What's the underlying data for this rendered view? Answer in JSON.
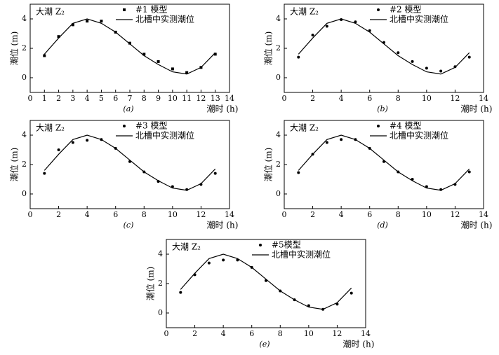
{
  "chart_data": [
    {
      "type": "line",
      "caption": "(a)",
      "title": "大潮 Z₂",
      "xlabel": "潮时 (h)",
      "ylabel": "潮位 (m)",
      "x": [
        1,
        2,
        3,
        4,
        5,
        6,
        7,
        8,
        9,
        10,
        11,
        12,
        13
      ],
      "xlim": [
        0,
        14
      ],
      "xticks": [
        0,
        1,
        2,
        3,
        4,
        5,
        6,
        7,
        8,
        9,
        10,
        11,
        12,
        13,
        14
      ],
      "ylim": [
        -1,
        5
      ],
      "yticks": [
        0,
        2,
        4
      ],
      "series": [
        {
          "name": "#1 模型",
          "color": "#000000",
          "style": "points",
          "marker": "square",
          "values": [
            1.5,
            2.8,
            3.6,
            3.85,
            3.85,
            3.1,
            2.35,
            1.6,
            1.1,
            0.6,
            0.35,
            0.7,
            1.6
          ]
        },
        {
          "name": "北槽中实测潮位",
          "color": "#000000",
          "style": "line",
          "values": [
            1.6,
            2.7,
            3.7,
            4.0,
            3.7,
            3.1,
            2.3,
            1.5,
            0.9,
            0.4,
            0.25,
            0.7,
            1.7
          ]
        }
      ]
    },
    {
      "type": "line",
      "caption": "(b)",
      "title": "大潮 Z₂",
      "xlabel": "潮时 (h)",
      "ylabel": "潮位 (m)",
      "x": [
        1,
        2,
        3,
        4,
        5,
        6,
        7,
        8,
        9,
        10,
        11,
        12,
        13
      ],
      "xlim": [
        0,
        14
      ],
      "xticks": [
        0,
        2,
        4,
        6,
        8,
        10,
        12,
        14
      ],
      "ylim": [
        -1,
        5
      ],
      "yticks": [
        0,
        2,
        4
      ],
      "series": [
        {
          "name": "#2 模型",
          "color": "#000000",
          "style": "points",
          "marker": "circle",
          "values": [
            1.4,
            2.9,
            3.5,
            3.95,
            3.8,
            3.2,
            2.4,
            1.7,
            1.1,
            0.65,
            0.45,
            0.75,
            1.4
          ]
        },
        {
          "name": "北槽中实测潮位",
          "color": "#000000",
          "style": "line",
          "values": [
            1.6,
            2.7,
            3.7,
            4.0,
            3.7,
            3.1,
            2.3,
            1.5,
            0.9,
            0.4,
            0.25,
            0.7,
            1.7
          ]
        }
      ]
    },
    {
      "type": "line",
      "caption": "(c)",
      "title": "大潮 Z₂",
      "xlabel": "潮时 (h)",
      "ylabel": "潮位 (m)",
      "x": [
        1,
        2,
        3,
        4,
        5,
        6,
        7,
        8,
        9,
        10,
        11,
        12,
        13
      ],
      "xlim": [
        0,
        14
      ],
      "xticks": [
        0,
        2,
        4,
        6,
        8,
        10,
        12,
        14
      ],
      "ylim": [
        -1,
        5
      ],
      "yticks": [
        0,
        2,
        4
      ],
      "series": [
        {
          "name": "#3 模型",
          "color": "#000000",
          "style": "points",
          "marker": "circle",
          "values": [
            1.4,
            3.0,
            3.5,
            3.65,
            3.7,
            3.1,
            2.2,
            1.5,
            0.85,
            0.5,
            0.3,
            0.65,
            1.4
          ]
        },
        {
          "name": "北槽中实测潮位",
          "color": "#000000",
          "style": "line",
          "values": [
            1.6,
            2.7,
            3.7,
            4.0,
            3.7,
            3.1,
            2.3,
            1.5,
            0.9,
            0.4,
            0.25,
            0.7,
            1.7
          ]
        }
      ]
    },
    {
      "type": "line",
      "caption": "(d)",
      "title": "大潮 Z₂",
      "xlabel": "潮时 (h)",
      "ylabel": "潮位 (m)",
      "x": [
        1,
        2,
        3,
        4,
        5,
        6,
        7,
        8,
        9,
        10,
        11,
        12,
        13
      ],
      "xlim": [
        0,
        14
      ],
      "xticks": [
        0,
        2,
        4,
        6,
        8,
        10,
        12,
        14
      ],
      "ylim": [
        -1,
        5
      ],
      "yticks": [
        0,
        2,
        4
      ],
      "series": [
        {
          "name": "#4 模型",
          "color": "#000000",
          "style": "points",
          "marker": "circle",
          "values": [
            1.45,
            2.7,
            3.5,
            3.7,
            3.7,
            3.1,
            2.2,
            1.5,
            1.0,
            0.5,
            0.3,
            0.65,
            1.5
          ]
        },
        {
          "name": "北槽中实测潮位",
          "color": "#000000",
          "style": "line",
          "values": [
            1.6,
            2.7,
            3.7,
            4.0,
            3.7,
            3.1,
            2.3,
            1.5,
            0.9,
            0.4,
            0.25,
            0.7,
            1.7
          ]
        }
      ]
    },
    {
      "type": "line",
      "caption": "(e)",
      "title": "大潮 Z₂",
      "xlabel": "潮时 (h)",
      "ylabel": "潮位 (m)",
      "x": [
        1,
        2,
        3,
        4,
        5,
        6,
        7,
        8,
        9,
        10,
        11,
        12,
        13
      ],
      "xlim": [
        0,
        14
      ],
      "xticks": [
        0,
        2,
        4,
        6,
        8,
        10,
        12,
        14
      ],
      "ylim": [
        -1,
        5
      ],
      "yticks": [
        0,
        2,
        4
      ],
      "series": [
        {
          "name": "#5模型",
          "color": "#000000",
          "style": "points",
          "marker": "circle",
          "values": [
            1.4,
            2.6,
            3.4,
            3.6,
            3.6,
            3.1,
            2.2,
            1.5,
            0.9,
            0.5,
            0.25,
            0.6,
            1.35
          ]
        },
        {
          "name": "北槽中实测潮位",
          "color": "#000000",
          "style": "line",
          "values": [
            1.6,
            2.7,
            3.7,
            4.0,
            3.7,
            3.1,
            2.3,
            1.5,
            0.9,
            0.4,
            0.25,
            0.7,
            1.7
          ]
        }
      ]
    }
  ]
}
